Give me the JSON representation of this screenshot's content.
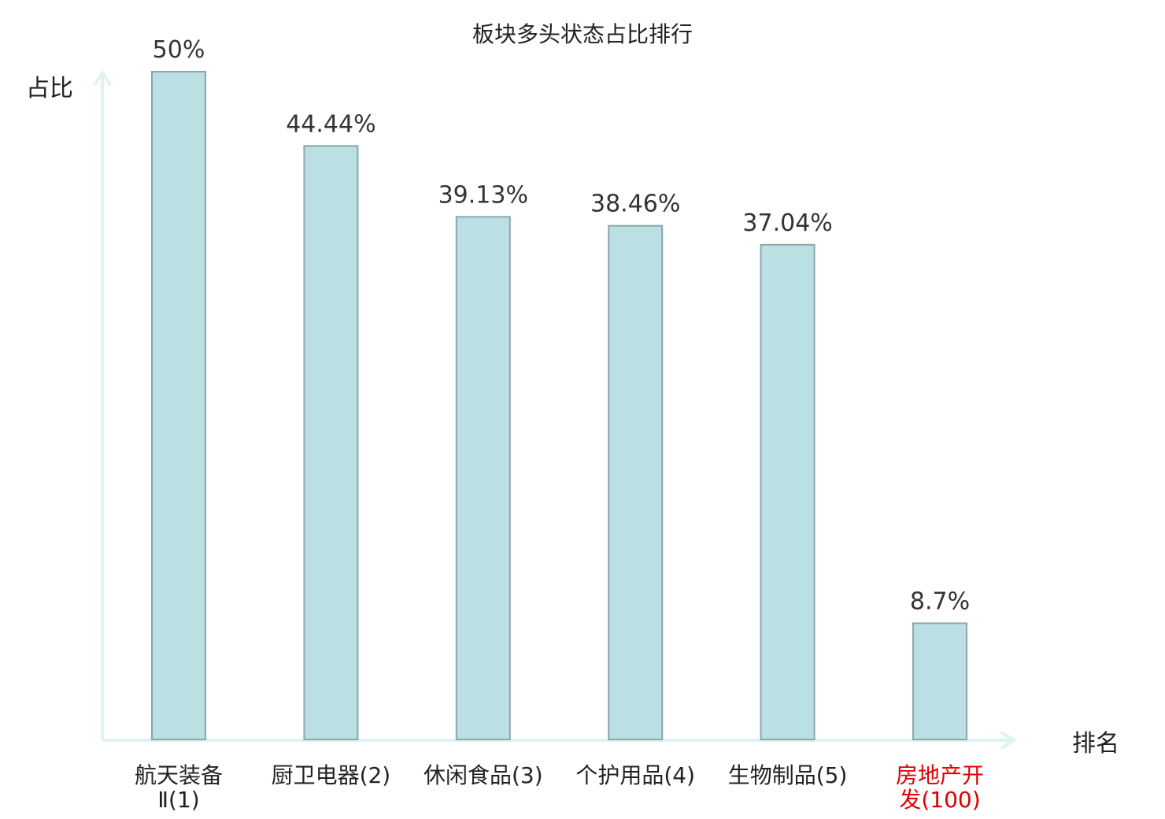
{
  "chart_data": {
    "type": "bar",
    "title": "板块多头状态占比排行",
    "ylabel": "占比",
    "xlabel": "排名",
    "ylim": [
      0,
      50
    ],
    "grid": false,
    "categories": [
      {
        "lines": [
          "航天装备",
          "Ⅱ(1)"
        ],
        "highlight": false
      },
      {
        "lines": [
          "厨卫电器(2)"
        ],
        "highlight": false
      },
      {
        "lines": [
          "休闲食品(3)"
        ],
        "highlight": false
      },
      {
        "lines": [
          "个护用品(4)"
        ],
        "highlight": false
      },
      {
        "lines": [
          "生物制品(5)"
        ],
        "highlight": false
      },
      {
        "lines": [
          "房地产开",
          "发(100)"
        ],
        "highlight": true
      }
    ],
    "values": [
      50,
      44.44,
      39.13,
      38.46,
      37.04,
      8.7
    ],
    "value_labels": [
      "50%",
      "44.44%",
      "39.13%",
      "38.46%",
      "37.04%",
      "8.7%"
    ],
    "colors": {
      "bar_fill": "#bbe0e3",
      "bar_stroke": "#8aa7aa",
      "axis": "#dff3f0",
      "text": "#222222",
      "value_text": "#333333",
      "highlight_text": "#e00000"
    }
  }
}
